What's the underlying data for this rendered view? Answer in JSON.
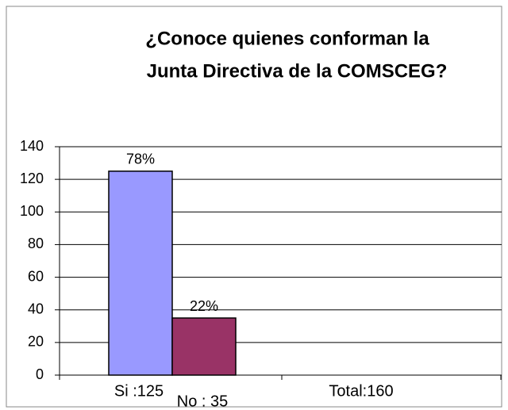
{
  "chart_data": {
    "type": "bar",
    "title": [
      "¿Conoce quienes conforman la",
      "Junta Directiva de la COMSCEG?"
    ],
    "categories": [
      "Si :125",
      "No : 35",
      "Total:160"
    ],
    "values": [
      125,
      35,
      0
    ],
    "value_labels": [
      "78%",
      "22%",
      null
    ],
    "colors": [
      "#9999ff",
      "#993366",
      "#ffffff"
    ],
    "ylim": [
      0,
      140
    ],
    "yticks": [
      0,
      20,
      40,
      60,
      80,
      100,
      120,
      140
    ],
    "grid": true
  }
}
